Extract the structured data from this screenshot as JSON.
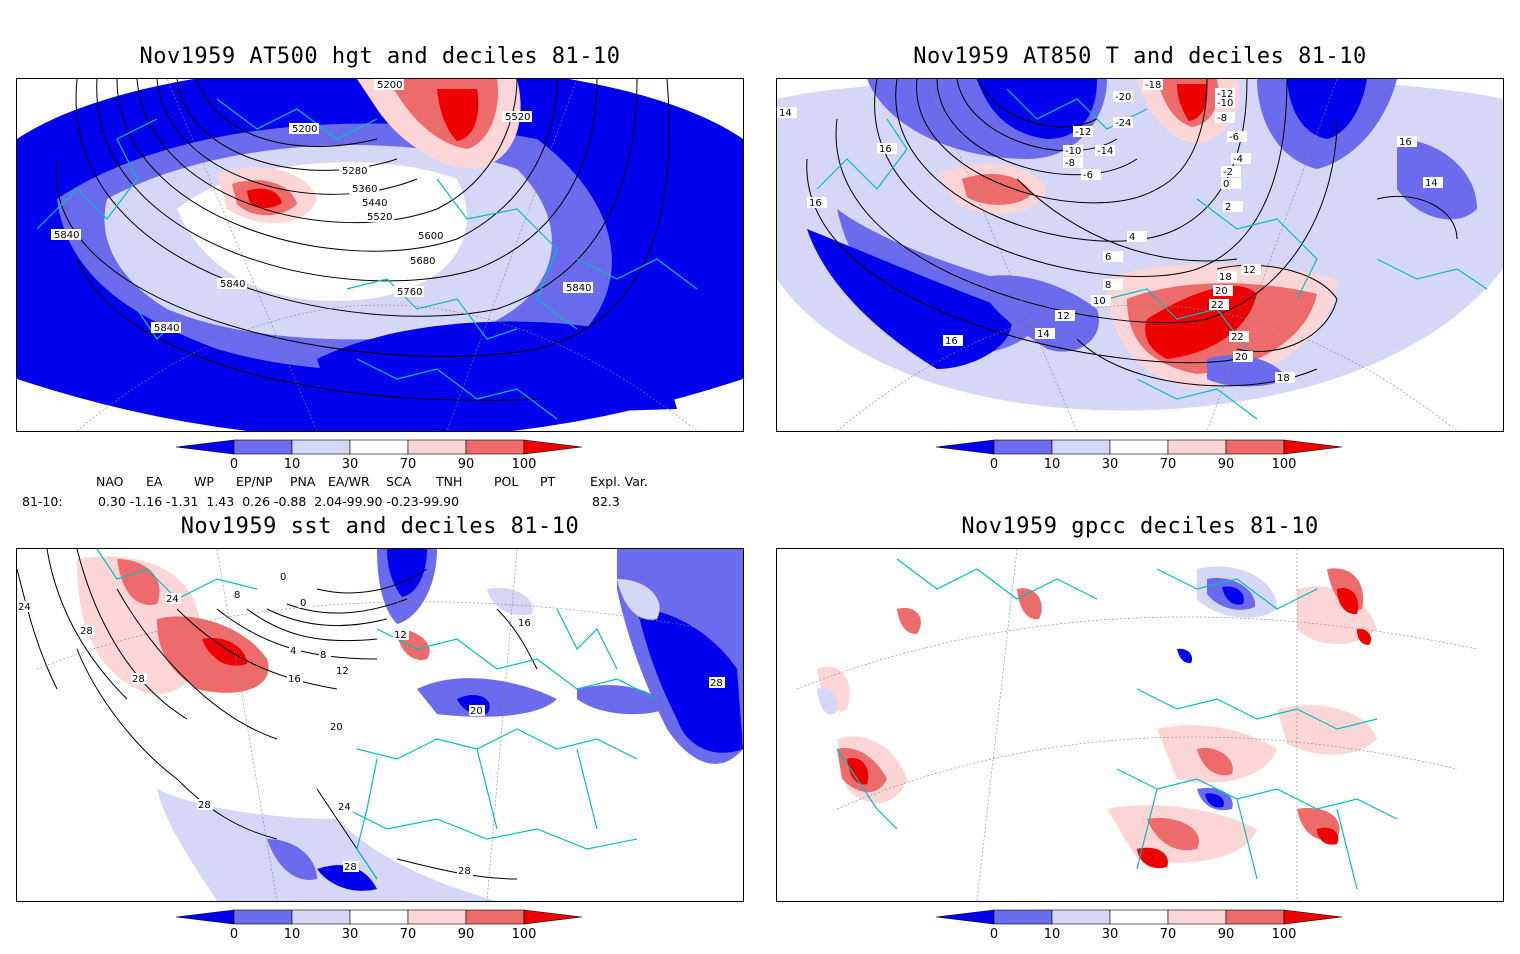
{
  "panels": {
    "p1": {
      "title": "Nov1959 AT500 hgt and deciles 81-10",
      "contour_labels": [
        "5200",
        "5200",
        "5280",
        "5360",
        "5440",
        "5520",
        "5520",
        "5600",
        "5680",
        "5760",
        "5840",
        "5840",
        "5840",
        "5840"
      ]
    },
    "p2": {
      "title": "Nov1959 AT850 T and deciles 81-10",
      "contour_labels": [
        "-18",
        "-20",
        "-12",
        "-10",
        "-8",
        "-24",
        "-12",
        "-10",
        "-14",
        "-8",
        "-6",
        "-6",
        "-4",
        "-2",
        "0",
        "2",
        "4",
        "14",
        "16",
        "16",
        "6",
        "8",
        "10",
        "12",
        "12",
        "14",
        "16",
        "18",
        "20",
        "22",
        "22",
        "20",
        "18",
        "16",
        "14"
      ]
    },
    "p3": {
      "title": "Nov1959 sst and deciles 81-10",
      "contour_labels": [
        "24",
        "24",
        "28",
        "28",
        "8",
        "0",
        "0",
        "4",
        "8",
        "12",
        "16",
        "20",
        "20",
        "24",
        "28",
        "28",
        "28",
        "28",
        "12",
        "16"
      ]
    },
    "p4": {
      "title": "Nov1959 gpcc deciles 81-10"
    }
  },
  "colorbar": {
    "tick_labels": [
      "0",
      "10",
      "30",
      "70",
      "90",
      "100"
    ],
    "colors": [
      "#0000ee",
      "#6b6bee",
      "#d6d6f7",
      "#ffffff",
      "#fcd6d6",
      "#ee6b6b",
      "#ee0000"
    ]
  },
  "indices": {
    "headers": [
      "NAO",
      "EA",
      "WP",
      "EP/NP",
      "PNA",
      "EA/WR",
      "SCA",
      "TNH",
      "POL",
      "PT",
      "Expl. Var."
    ],
    "row_label": "81-10:",
    "values_text": "0.30 -1.16 -1.31  1.43  0.26 -0.88  2.04-99.90 -0.23-99.90",
    "expl_var": "82.3"
  }
}
